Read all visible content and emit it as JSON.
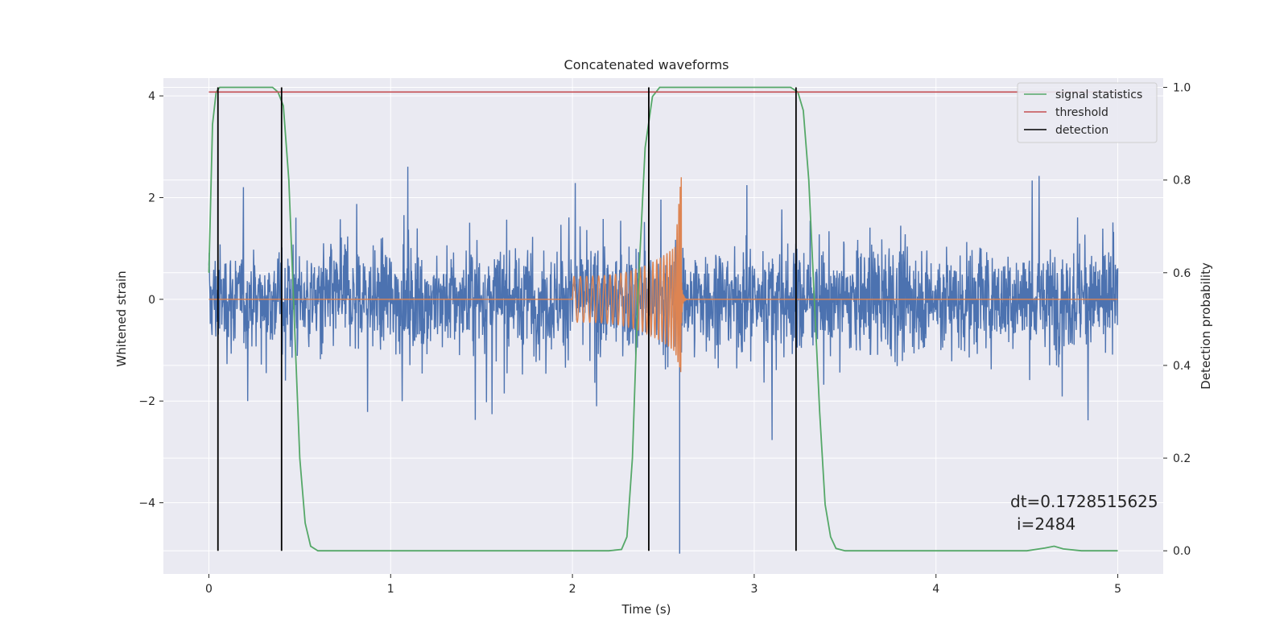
{
  "chart_data": {
    "type": "line",
    "title": "Concatenated waveforms",
    "xlabel": "Time (s)",
    "ylabel": "Whitened strain",
    "y2label": "Detection probability",
    "xlim": [
      -0.25,
      5.25
    ],
    "ylim": [
      -5.4,
      4.35
    ],
    "y2lim": [
      -0.05,
      1.02
    ],
    "x_ticks": [
      0,
      1,
      2,
      3,
      4,
      5
    ],
    "y_ticks": [
      -4,
      -2,
      0,
      2,
      4
    ],
    "y_tick_labels": [
      "−4",
      "−2",
      "0",
      "2",
      "4"
    ],
    "y2_ticks": [
      0.0,
      0.2,
      0.4,
      0.6,
      0.8,
      1.0
    ],
    "y2_tick_labels": [
      "0.0",
      "0.2",
      "0.4",
      "0.6",
      "0.8",
      "1.0"
    ],
    "grid": true,
    "legend_position": "top-right",
    "annotation": {
      "line1": "dt=0.1728515625",
      "line2": "i=2484"
    },
    "series": [
      {
        "name": "signal statistics",
        "axis": "right",
        "color": "#55a868",
        "x": [
          0.0,
          0.02,
          0.04,
          0.06,
          0.08,
          0.1,
          0.35,
          0.38,
          0.41,
          0.44,
          0.47,
          0.5,
          0.53,
          0.56,
          0.6,
          2.2,
          2.27,
          2.3,
          2.33,
          2.36,
          2.4,
          2.44,
          2.48,
          2.55,
          3.2,
          3.24,
          3.27,
          3.3,
          3.33,
          3.36,
          3.39,
          3.42,
          3.45,
          3.5,
          4.5,
          4.6,
          4.65,
          4.7,
          4.8,
          5.0
        ],
        "y": [
          0.6,
          0.92,
          0.99,
          1.0,
          1.0,
          1.0,
          1.0,
          0.99,
          0.96,
          0.8,
          0.5,
          0.2,
          0.06,
          0.01,
          0.0,
          0.0,
          0.003,
          0.03,
          0.2,
          0.55,
          0.87,
          0.98,
          1.0,
          1.0,
          1.0,
          0.99,
          0.95,
          0.8,
          0.55,
          0.3,
          0.1,
          0.03,
          0.005,
          0.0,
          0.0,
          0.006,
          0.01,
          0.004,
          0.0,
          0.0
        ]
      },
      {
        "name": "threshold",
        "axis": "right",
        "color": "#c44e52",
        "x": [
          0.0,
          5.0
        ],
        "y": [
          0.99,
          0.99
        ]
      },
      {
        "name": "detection",
        "axis": "right",
        "color": "#000000",
        "type": "vlines",
        "x": [
          0.05,
          0.4,
          2.42,
          3.23
        ],
        "y_range": [
          0.0,
          1.0
        ]
      },
      {
        "name": "",
        "axis": "left",
        "color": "#4c72b0",
        "type": "noise",
        "x_range": [
          0.0,
          5.0
        ],
        "amplitude_typical": 1.8,
        "amplitude_max": 3.2,
        "y_extreme_min": -5.0
      },
      {
        "name": "",
        "axis": "left",
        "color": "#dd8452",
        "type": "chirp",
        "x_start": 2.0,
        "x_merger": 2.6,
        "amp_start": 0.45,
        "amp_peak_upper": 2.5,
        "amp_peak_lower": -1.5
      }
    ]
  }
}
